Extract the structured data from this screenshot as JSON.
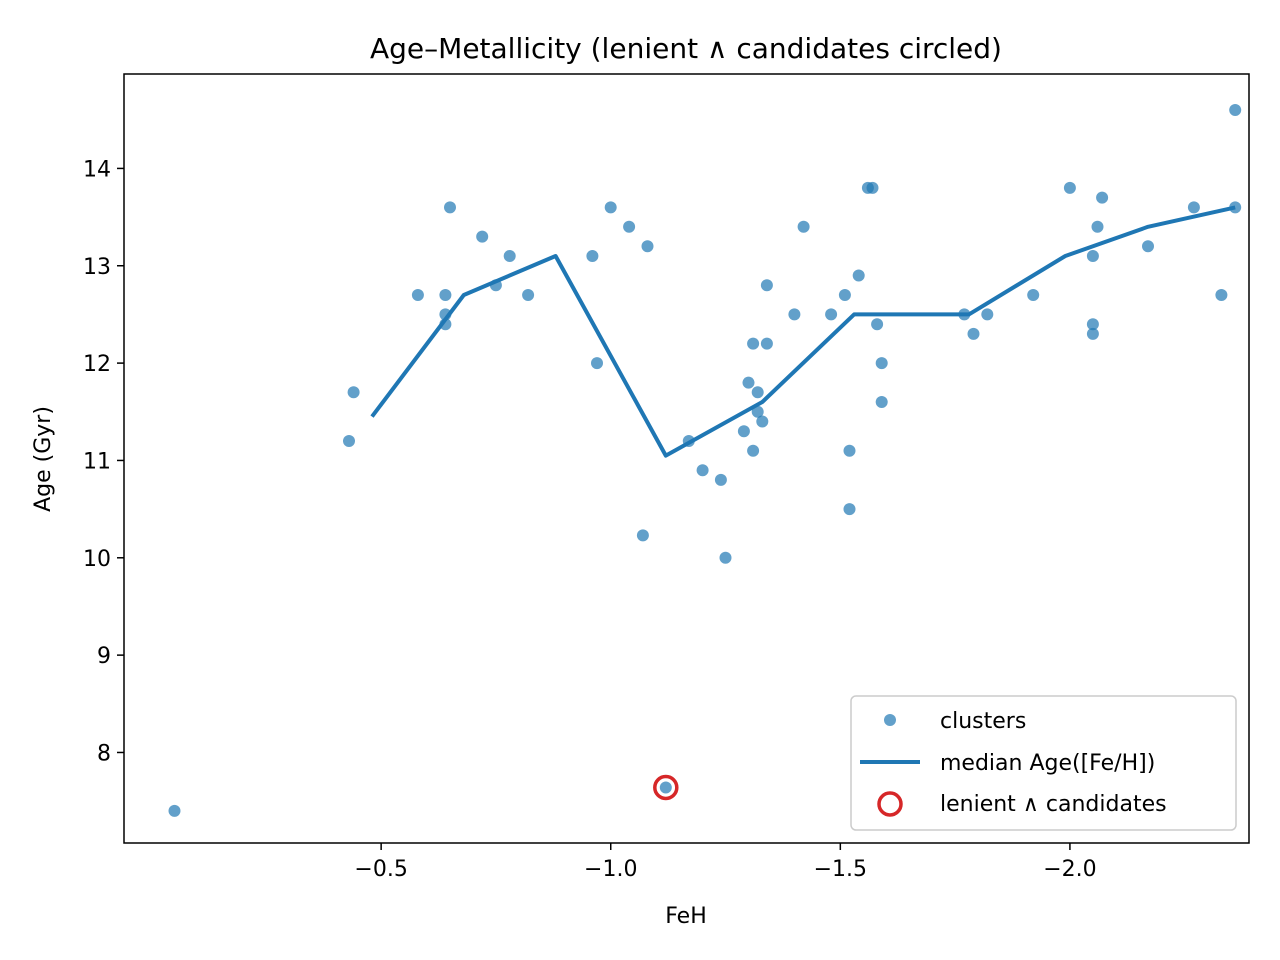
{
  "chart_data": {
    "type": "scatter",
    "title": "Age–Metallicity (lenient ∧ candidates circled)",
    "xlabel": "FeH",
    "ylabel": "Age (Gyr)",
    "xlim": [
      0.06,
      -2.39
    ],
    "ylim": [
      7.07,
      14.97
    ],
    "x_ticks": [
      -0.5,
      -1.0,
      -1.5,
      -2.0
    ],
    "x_tick_labels": [
      "−0.5",
      "−1.0",
      "−1.5",
      "−2.0"
    ],
    "y_ticks": [
      8,
      9,
      10,
      11,
      12,
      13,
      14
    ],
    "y_tick_labels": [
      "8",
      "9",
      "10",
      "11",
      "12",
      "13",
      "14"
    ],
    "grid": false,
    "legend_position": "lower right",
    "series": [
      {
        "name": "clusters",
        "kind": "scatter",
        "color": "#1f77b4",
        "points": [
          [
            -0.05,
            7.4
          ],
          [
            -0.43,
            11.2
          ],
          [
            -0.44,
            11.7
          ],
          [
            -0.65,
            13.6
          ],
          [
            -0.58,
            12.7
          ],
          [
            -0.64,
            12.5
          ],
          [
            -0.64,
            12.4
          ],
          [
            -0.64,
            12.7
          ],
          [
            -0.72,
            13.3
          ],
          [
            -0.75,
            12.8
          ],
          [
            -0.78,
            13.1
          ],
          [
            -0.82,
            12.7
          ],
          [
            -0.96,
            13.1
          ],
          [
            -0.97,
            12.0
          ],
          [
            -1.0,
            13.6
          ],
          [
            -1.04,
            13.4
          ],
          [
            -1.08,
            13.2
          ],
          [
            -1.07,
            10.23
          ],
          [
            -1.12,
            7.64
          ],
          [
            -1.17,
            11.2
          ],
          [
            -1.2,
            10.9
          ],
          [
            -1.24,
            10.8
          ],
          [
            -1.25,
            10.0
          ],
          [
            -1.29,
            11.3
          ],
          [
            -1.3,
            11.8
          ],
          [
            -1.31,
            11.1
          ],
          [
            -1.31,
            12.2
          ],
          [
            -1.32,
            11.5
          ],
          [
            -1.32,
            11.7
          ],
          [
            -1.33,
            11.4
          ],
          [
            -1.34,
            12.2
          ],
          [
            -1.34,
            12.8
          ],
          [
            -1.4,
            12.5
          ],
          [
            -1.42,
            13.4
          ],
          [
            -1.48,
            12.5
          ],
          [
            -1.51,
            12.7
          ],
          [
            -1.52,
            11.1
          ],
          [
            -1.52,
            10.5
          ],
          [
            -1.54,
            12.9
          ],
          [
            -1.56,
            13.8
          ],
          [
            -1.57,
            13.8
          ],
          [
            -1.58,
            12.4
          ],
          [
            -1.59,
            12.0
          ],
          [
            -1.59,
            11.6
          ],
          [
            -1.77,
            12.5
          ],
          [
            -1.79,
            12.3
          ],
          [
            -1.82,
            12.5
          ],
          [
            -1.92,
            12.7
          ],
          [
            -2.0,
            13.8
          ],
          [
            -2.05,
            13.1
          ],
          [
            -2.05,
            12.4
          ],
          [
            -2.05,
            12.3
          ],
          [
            -2.06,
            13.4
          ],
          [
            -2.07,
            13.7
          ],
          [
            -2.17,
            13.2
          ],
          [
            -2.27,
            13.6
          ],
          [
            -2.33,
            12.7
          ],
          [
            -2.36,
            14.6
          ],
          [
            -2.36,
            13.6
          ]
        ]
      },
      {
        "name": "median Age([Fe/H])",
        "kind": "line",
        "color": "#1f77b4",
        "points": [
          [
            -0.48,
            11.45
          ],
          [
            -0.68,
            12.7
          ],
          [
            -0.88,
            13.1
          ],
          [
            -1.12,
            11.05
          ],
          [
            -1.33,
            11.6
          ],
          [
            -1.53,
            12.5
          ],
          [
            -1.78,
            12.5
          ],
          [
            -1.99,
            13.1
          ],
          [
            -2.17,
            13.4
          ],
          [
            -2.36,
            13.6
          ]
        ]
      },
      {
        "name": "lenient ∧ candidates",
        "kind": "marker-ring",
        "color": "#d62728",
        "points": [
          [
            -1.12,
            7.64
          ]
        ]
      }
    ]
  }
}
